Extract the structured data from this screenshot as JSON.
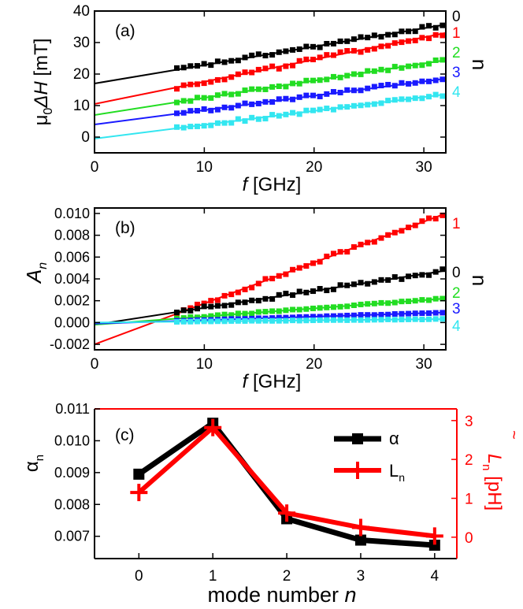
{
  "colors": {
    "black": "#000000",
    "red": "#ff0000",
    "green": "#22dd22",
    "blue": "#1a1aff",
    "cyan": "#33e6f0"
  },
  "chart_data": [
    {
      "id": "a",
      "type": "scatter",
      "panel_label": "(a)",
      "xlabel_italic": "f",
      "xlabel": "[GHz]",
      "ylabel_prefix": "μ",
      "ylabel_sub": "0",
      "ylabel_italic": "ΔH",
      "ylabel_suffix": "[mT]",
      "side_label": "n",
      "xlim": [
        0,
        32
      ],
      "ylim": [
        -5,
        40
      ],
      "xticks": [
        0,
        10,
        20,
        30
      ],
      "yticks": [
        0,
        10,
        20,
        30,
        40
      ],
      "grid": false,
      "series": [
        {
          "name": "0",
          "color": "#000000",
          "fit": {
            "intercept": 17.0,
            "slope": 0.585
          },
          "x_start": 7.5,
          "x_end": 31.7,
          "count": 40,
          "noise": 0.6
        },
        {
          "name": "1",
          "color": "#ff0000",
          "fit": {
            "intercept": 10.5,
            "slope": 0.705
          },
          "x_start": 7.5,
          "x_end": 31.7,
          "count": 40,
          "noise": 0.7
        },
        {
          "name": "2",
          "color": "#22dd22",
          "fit": {
            "intercept": 7.0,
            "slope": 0.545
          },
          "x_start": 7.5,
          "x_end": 31.7,
          "count": 40,
          "noise": 0.5
        },
        {
          "name": "3",
          "color": "#1a1aff",
          "fit": {
            "intercept": 4.0,
            "slope": 0.455
          },
          "x_start": 7.5,
          "x_end": 31.7,
          "count": 40,
          "noise": 0.5
        },
        {
          "name": "4",
          "color": "#33e6f0",
          "fit": {
            "intercept": -0.5,
            "slope": 0.44
          },
          "x_start": 7.5,
          "x_end": 31.7,
          "count": 40,
          "noise": 0.5
        }
      ]
    },
    {
      "id": "b",
      "type": "scatter",
      "panel_label": "(b)",
      "xlabel_italic": "f",
      "xlabel": "[GHz]",
      "ylabel_italic": "A",
      "ylabel_sub": "n",
      "side_label": "n",
      "xlim": [
        0,
        32
      ],
      "ylim": [
        -0.0025,
        0.0105
      ],
      "xticks": [
        0,
        10,
        20,
        30
      ],
      "yticks": [
        -0.002,
        0.0,
        0.002,
        0.004,
        0.006,
        0.008,
        0.01
      ],
      "ytick_labels": [
        "-0.002",
        "0.000",
        "0.002",
        "0.004",
        "0.006",
        "0.008",
        "0.010"
      ],
      "grid": false,
      "series": [
        {
          "name": "1",
          "color": "#ff0000",
          "fit": {
            "intercept": -0.002,
            "slope": 0.000375
          },
          "x_start": 7.5,
          "x_end": 31.7,
          "count": 40,
          "noise": 0.00018
        },
        {
          "name": "0",
          "color": "#000000",
          "fit": {
            "intercept": -0.0002,
            "slope": 0.000155
          },
          "x_start": 7.5,
          "x_end": 31.7,
          "count": 40,
          "noise": 0.00018
        },
        {
          "name": "2",
          "color": "#22dd22",
          "fit": {
            "intercept": -0.0002,
            "slope": 7.5e-05
          },
          "x_start": 7.5,
          "x_end": 31.7,
          "count": 40,
          "noise": 5e-05
        },
        {
          "name": "3",
          "color": "#1a1aff",
          "fit": {
            "intercept": -0.0001,
            "slope": 3.2e-05
          },
          "x_start": 7.5,
          "x_end": 31.7,
          "count": 40,
          "noise": 3e-05
        },
        {
          "name": "4",
          "color": "#33e6f0",
          "fit": {
            "intercept": 0.0,
            "slope": 1e-05
          },
          "x_start": 7.5,
          "x_end": 31.7,
          "count": 40,
          "noise": 2e-05
        }
      ]
    },
    {
      "id": "c",
      "type": "line",
      "panel_label": "(c)",
      "xlabel": "mode number",
      "xlabel_italic": "n",
      "ylabel": "α",
      "ylabel_sub": "n",
      "y2label": "L",
      "y2label_sub": "n",
      "y2label_unit": "[pH]",
      "y2label_mark": "~",
      "xlim": [
        -0.6,
        4.3
      ],
      "ylim": [
        0.0063,
        0.011
      ],
      "y2lim": [
        -0.55,
        3.3
      ],
      "xticks": [
        0,
        1,
        2,
        3,
        4
      ],
      "yticks": [
        0.007,
        0.008,
        0.009,
        0.01,
        0.011
      ],
      "ytick_labels": [
        "0.007",
        "0.008",
        "0.009",
        "0.010",
        "0.011"
      ],
      "y2ticks": [
        0,
        1,
        2,
        3
      ],
      "legend": {
        "placement": "top-right",
        "entries": [
          "α",
          "L"
        ],
        "entry_sub": [
          "",
          "n"
        ]
      },
      "x": [
        0,
        1,
        2,
        3,
        4
      ],
      "series": [
        {
          "name": "α",
          "axis": "left",
          "color": "#000000",
          "values": [
            0.00895,
            0.01055,
            0.00755,
            0.00688,
            0.00672
          ],
          "errors": [
            0.0001,
            0.0001,
            0.0001,
            7e-05,
            7e-05
          ],
          "marker": "square"
        },
        {
          "name": "L_n",
          "axis": "right",
          "color": "#ff0000",
          "values": [
            1.15,
            2.82,
            0.62,
            0.25,
            0.03
          ],
          "marker": "plus"
        }
      ]
    }
  ]
}
